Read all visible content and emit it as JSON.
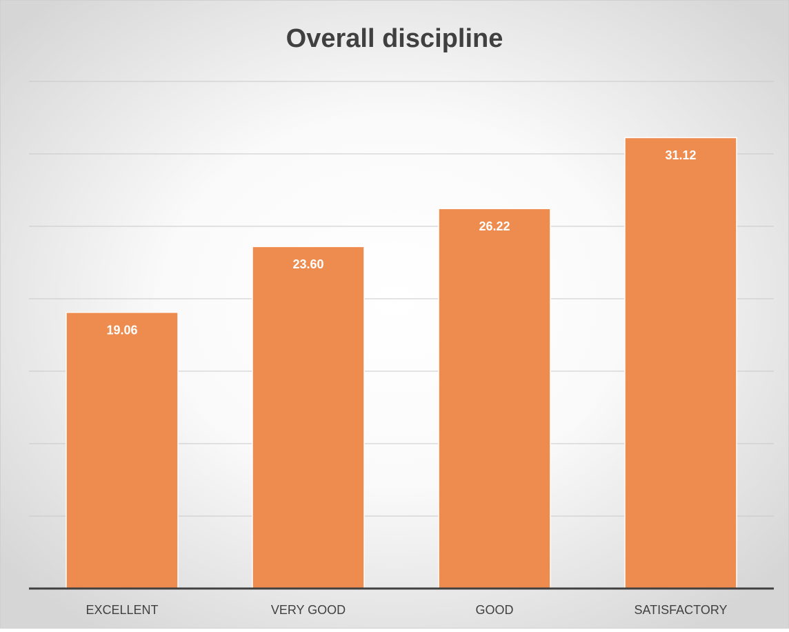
{
  "chart_data": {
    "type": "bar",
    "title": "Overall discipline",
    "categories": [
      "EXCELLENT",
      "VERY GOOD",
      "GOOD",
      "SATISFACTORY"
    ],
    "values": [
      19.06,
      23.6,
      26.22,
      31.12
    ],
    "value_labels": [
      "19.06",
      "23.60",
      "26.22",
      "31.12"
    ],
    "color": "#ee8c4f",
    "ylim": [
      0,
      35
    ],
    "yticks": [
      0,
      5,
      10,
      15,
      20,
      25,
      30,
      35
    ],
    "grid": true
  }
}
